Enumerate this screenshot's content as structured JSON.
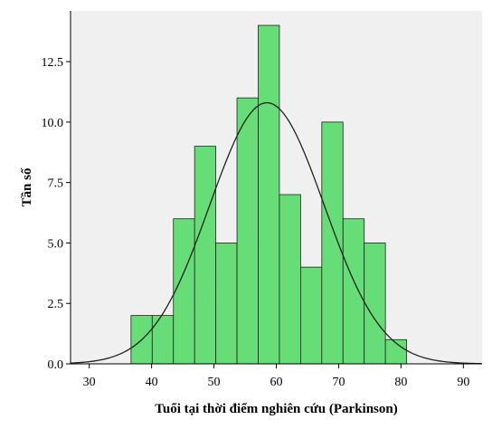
{
  "chart_data": {
    "type": "bar",
    "xlabel": "Tuổi tại thời điểm nghiên cứu (Parkinson)",
    "ylabel": "Tần số",
    "xlim": [
      27,
      93
    ],
    "ylim": [
      0,
      14.6
    ],
    "xticks": [
      "30",
      "40",
      "50",
      "60",
      "70",
      "80",
      "90"
    ],
    "xtick_values": [
      30,
      40,
      50,
      60,
      70,
      80,
      90
    ],
    "yticks": [
      "0.0",
      "2.5",
      "5.0",
      "7.5",
      "10.0",
      "12.5"
    ],
    "ytick_values": [
      0,
      2.5,
      5.0,
      7.5,
      10.0,
      12.5
    ],
    "bin_edges": [
      36.7,
      40.1,
      43.5,
      46.9,
      50.3,
      53.7,
      57.1,
      60.5,
      63.9,
      67.3,
      70.7,
      74.1,
      77.5,
      80.9
    ],
    "values": [
      2,
      2,
      6,
      9,
      5,
      11,
      14,
      7,
      4,
      10,
      6,
      5,
      1
    ],
    "normal_curve": {
      "mean": 58.5,
      "sd": 9.2,
      "peak": 10.8
    },
    "bar_color": "#66dd77",
    "bar_edge_color": "#222222",
    "plot_background": "#f0f0f0",
    "curve_color": "#222222",
    "grid": false,
    "legend": "none"
  }
}
